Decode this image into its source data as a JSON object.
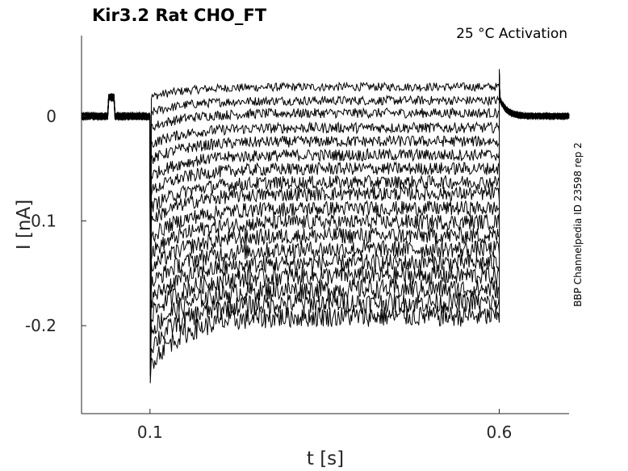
{
  "chart_data": {
    "type": "line",
    "title": "Kir3.2  Rat  CHO_FT",
    "subtitle": "25 °C  Activation",
    "side_label": "BBP Channelpedia ID 23598 rep 2",
    "xlabel": "t [s]",
    "ylabel": "I [nA]",
    "xlim": [
      0.002,
      0.7
    ],
    "ylim": [
      -0.284,
      0.077
    ],
    "x_ticks": [
      0.1,
      0.6
    ],
    "x_tick_labels": [
      "0.1",
      "0.6"
    ],
    "y_ticks": [
      0,
      -0.1,
      -0.2
    ],
    "y_tick_labels": [
      "0",
      "-0.1",
      "-0.2"
    ],
    "grid": false,
    "step_start": 0.1,
    "step_end": 0.6,
    "baseline": 0.0,
    "prepulse": {
      "start": 0.04,
      "end": 0.05,
      "value": 0.018
    },
    "steady_levels": [
      0.028,
      0.015,
      0.003,
      -0.011,
      -0.024,
      -0.037,
      -0.05,
      -0.063,
      -0.074,
      -0.088,
      -0.101,
      -0.114,
      -0.127,
      -0.14,
      -0.152,
      -0.165,
      -0.178,
      -0.191
    ],
    "initial_peak": -0.255,
    "end_spike": 0.045,
    "series_color": "#000000"
  }
}
